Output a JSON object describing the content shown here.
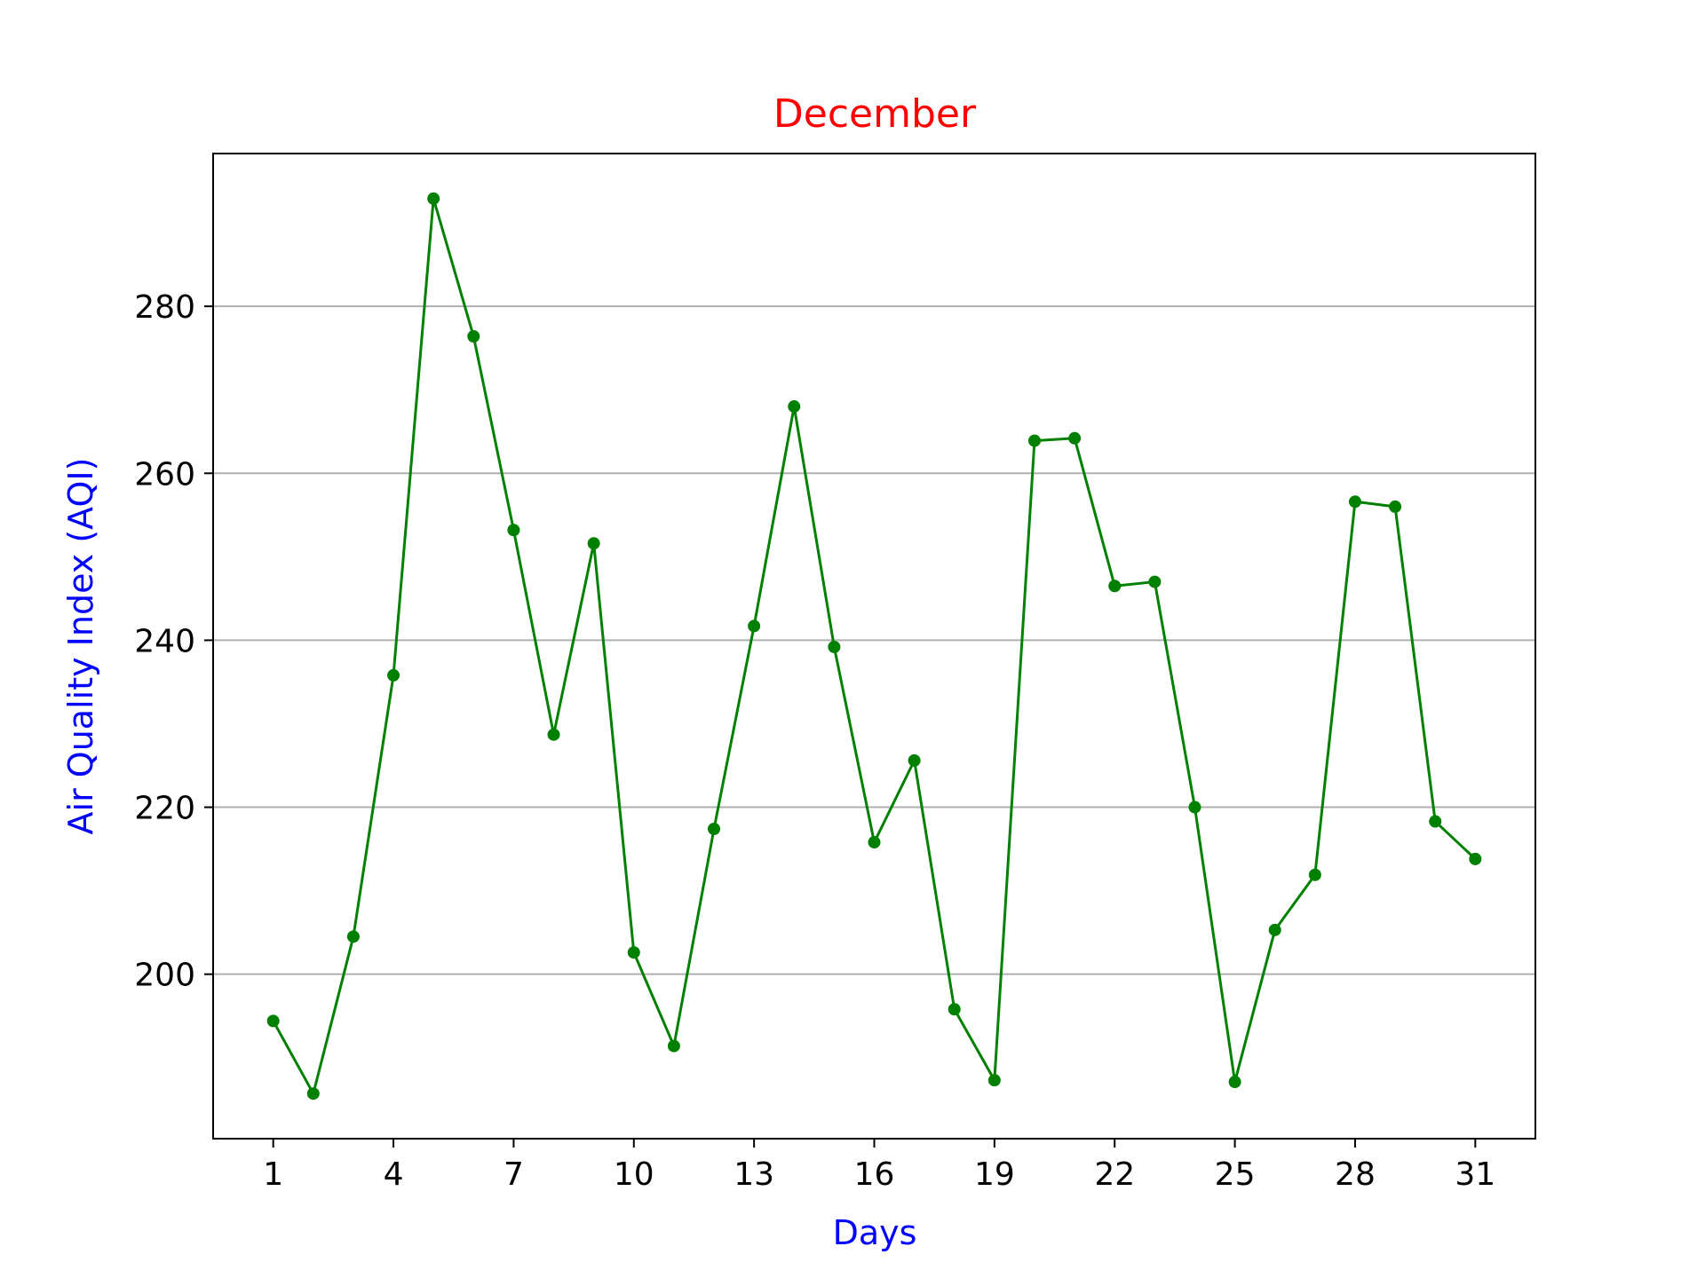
{
  "colors": {
    "title": "#ff0000",
    "axis_label": "#0000ff",
    "series": "#008000",
    "grid": "#b0b0b0",
    "tick_text": "#000000",
    "frame": "#000000",
    "background": "#ffffff"
  },
  "chart_data": {
    "type": "line",
    "title": "December",
    "xlabel": "Days",
    "ylabel": "Air Quality Index (AQI)",
    "xlim": [
      -0.5,
      32.5
    ],
    "ylim": [
      180.3,
      298.3
    ],
    "xticks": [
      1,
      4,
      7,
      10,
      13,
      16,
      19,
      22,
      25,
      28,
      31
    ],
    "yticks": [
      200,
      220,
      240,
      260,
      280
    ],
    "grid": "y-axis only",
    "legend": "none",
    "marker": "circle",
    "series": [
      {
        "x": [
          1,
          2,
          3,
          4,
          5,
          6,
          7,
          8,
          9,
          10,
          11,
          12,
          13,
          14,
          15,
          16,
          17,
          18,
          19,
          20,
          21,
          22,
          23,
          24,
          25,
          26,
          27,
          28,
          29,
          30,
          31
        ],
        "values": [
          194.4,
          185.7,
          204.5,
          235.8,
          292.9,
          276.4,
          253.2,
          228.7,
          251.6,
          202.6,
          191.4,
          217.4,
          241.7,
          268.0,
          239.2,
          215.8,
          225.6,
          195.8,
          187.3,
          263.9,
          264.2,
          246.5,
          247.0,
          220.0,
          187.1,
          205.3,
          211.9,
          256.6,
          256.0,
          218.3,
          213.8
        ]
      }
    ]
  }
}
